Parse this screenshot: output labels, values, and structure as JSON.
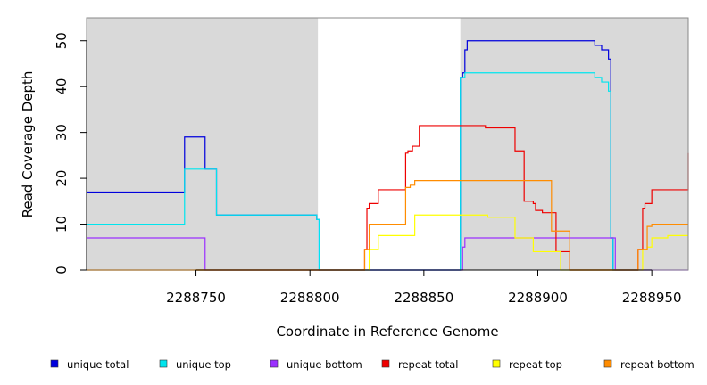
{
  "chart_data": {
    "type": "line",
    "xlabel": "Coordinate in Reference Genome",
    "ylabel": "Read Coverage Depth",
    "xlim": [
      2288702,
      2288966
    ],
    "ylim": [
      0,
      55
    ],
    "x_ticks": [
      2288750,
      2288800,
      2288850,
      2288900,
      2288950
    ],
    "y_ticks": [
      0,
      10,
      20,
      30,
      40,
      50
    ],
    "grid": false,
    "legend_position": "bottom",
    "shaded_regions": [
      {
        "x": [
          2288702,
          2288803.5
        ],
        "color": "#d9d9d9"
      },
      {
        "x": [
          2288866,
          2288966
        ],
        "color": "#d9d9d9"
      }
    ],
    "series": [
      {
        "name": "unique total",
        "color": "#0000dd",
        "x": [
          2288702,
          2288745,
          2288754,
          2288759,
          2288803,
          2288804,
          2288866,
          2288867,
          2288868,
          2288869,
          2288870,
          2288925,
          2288928,
          2288931,
          2288932,
          2288933,
          2288944
        ],
        "y": [
          17,
          29,
          22,
          12,
          11,
          0,
          42,
          43,
          48,
          50,
          50,
          49,
          48,
          46,
          7,
          0,
          0
        ]
      },
      {
        "name": "unique top",
        "color": "#00e5ee",
        "x": [
          2288702,
          2288745,
          2288754,
          2288759,
          2288803,
          2288804,
          2288866,
          2288868,
          2288870,
          2288925,
          2288928,
          2288931,
          2288932,
          2288933,
          2288944
        ],
        "y": [
          10,
          22,
          22,
          12,
          11,
          0,
          42,
          43,
          43,
          42,
          41,
          39,
          7,
          0,
          0
        ]
      },
      {
        "name": "unique bottom",
        "color": "#9b30ff",
        "x": [
          2288702,
          2288754,
          2288866,
          2288867,
          2288868,
          2288869,
          2288934,
          2288966
        ],
        "y": [
          7,
          0,
          0,
          5,
          7,
          7,
          0,
          0
        ]
      },
      {
        "name": "repeat total",
        "color": "#ee0000",
        "x": [
          2288702,
          2288821,
          2288824,
          2288825,
          2288826,
          2288830,
          2288842,
          2288843,
          2288844,
          2288845,
          2288846,
          2288848,
          2288866,
          2288877,
          2288890,
          2288894,
          2288897,
          2288898,
          2288899,
          2288902,
          2288908,
          2288910,
          2288914,
          2288922,
          2288944,
          2288946,
          2288947,
          2288950,
          2288960,
          2288966
        ],
        "y": [
          0,
          0,
          4.5,
          13.5,
          14.5,
          17.5,
          25.5,
          26,
          26,
          27,
          27,
          31.5,
          31.5,
          31,
          26,
          15,
          15,
          14.5,
          13,
          12.5,
          4,
          4,
          0,
          0,
          4.5,
          13.5,
          14.5,
          17.5,
          17.5,
          25.5
        ]
      },
      {
        "name": "repeat top",
        "color": "#ffff00",
        "x": [
          2288702,
          2288824,
          2288826,
          2288830,
          2288844,
          2288846,
          2288848,
          2288866,
          2288878,
          2288890,
          2288898,
          2288910,
          2288944,
          2288946,
          2288948,
          2288950,
          2288957,
          2288966
        ],
        "y": [
          0,
          0,
          4.5,
          7.5,
          7.5,
          12,
          12,
          12,
          11.5,
          7,
          4,
          0,
          0,
          4.5,
          5,
          7,
          7.5,
          7.5
        ]
      },
      {
        "name": "repeat bottom",
        "color": "#ff8c00",
        "x": [
          2288702,
          2288821,
          2288824,
          2288826,
          2288842,
          2288844,
          2288846,
          2288890,
          2288906,
          2288914,
          2288930,
          2288944,
          2288946,
          2288948,
          2288950,
          2288966
        ],
        "y": [
          0,
          0,
          4.5,
          10,
          18,
          18.5,
          19.5,
          19.5,
          8.5,
          0,
          0,
          4.5,
          4.5,
          9.5,
          10,
          10
        ]
      }
    ]
  }
}
